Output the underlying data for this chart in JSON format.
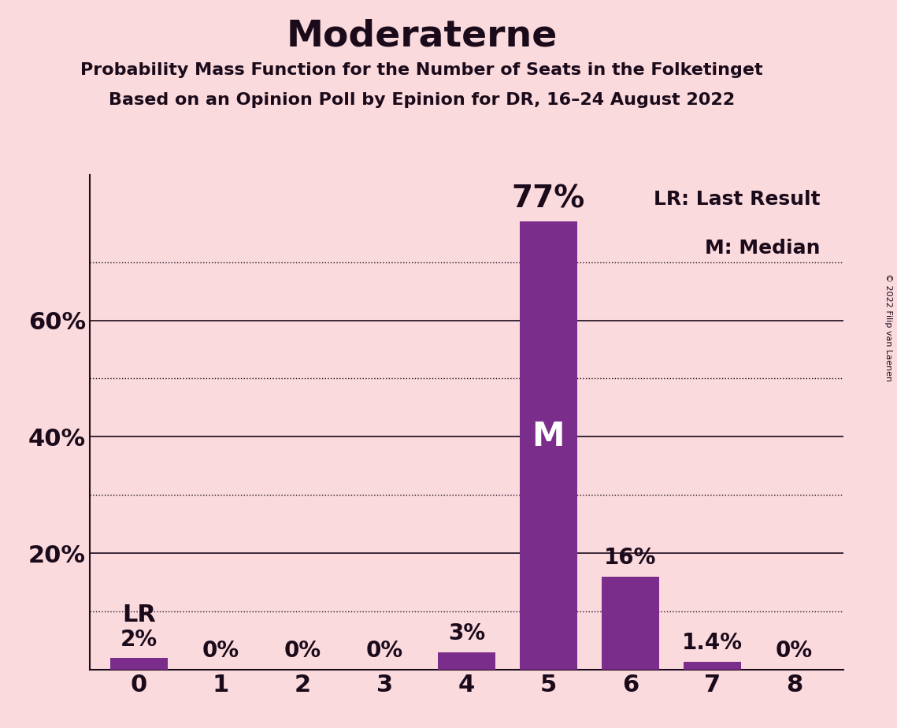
{
  "title": "Moderaterne",
  "subtitle1": "Probability Mass Function for the Number of Seats in the Folketinget",
  "subtitle2": "Based on an Opinion Poll by Epinion for DR, 16–24 August 2022",
  "copyright": "© 2022 Filip van Laenen",
  "categories": [
    0,
    1,
    2,
    3,
    4,
    5,
    6,
    7,
    8
  ],
  "values": [
    0.02,
    0.0,
    0.0,
    0.0,
    0.03,
    0.77,
    0.16,
    0.014,
    0.0
  ],
  "bar_labels": [
    "2%",
    "0%",
    "0%",
    "0%",
    "3%",
    "",
    "16%",
    "1.4%",
    "0%"
  ],
  "bar_color": "#7b2d8b",
  "background_color": "#fadadd",
  "text_color": "#1a0a1a",
  "ylim": [
    0,
    0.85
  ],
  "yticks": [
    0.0,
    0.2,
    0.4,
    0.6
  ],
  "ytick_labels": [
    "",
    "20%",
    "40%",
    "60%"
  ],
  "dotted_lines": [
    0.1,
    0.3,
    0.5,
    0.7
  ],
  "lr_bar": 0,
  "median_bar": 5,
  "median_label": "M",
  "lr_label": "LR",
  "legend_lr": "LR: Last Result",
  "legend_m": "M: Median",
  "bar_label_77": "77%"
}
